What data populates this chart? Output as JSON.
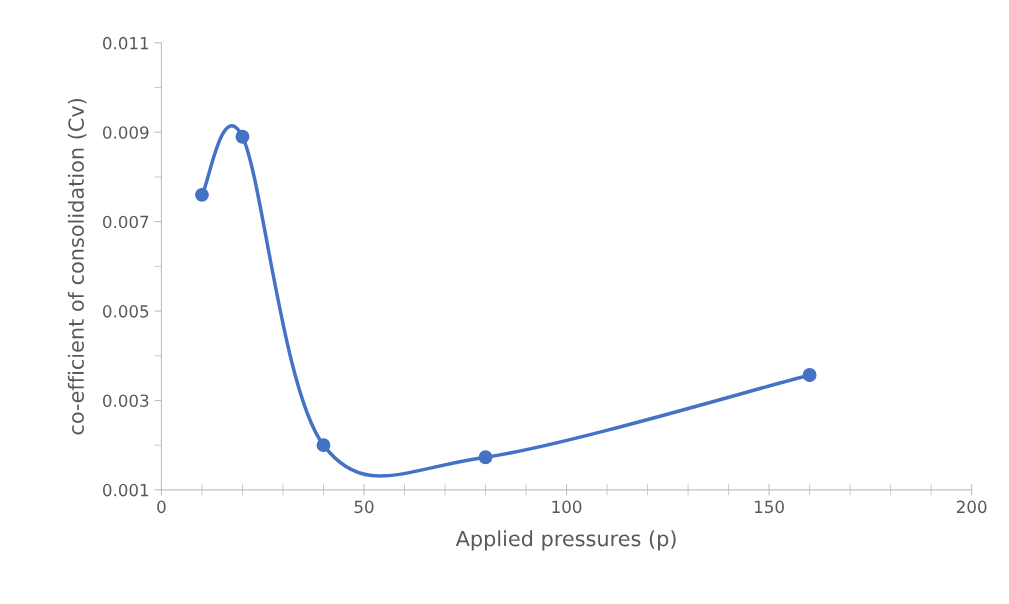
{
  "chart_data": {
    "type": "line",
    "xlabel": "Applied pressures (p)",
    "ylabel": "co-efficient of consolidation (Cv)",
    "x": [
      10,
      20,
      40,
      80,
      160
    ],
    "series": [
      {
        "color": "#4472c4",
        "values": [
          0.0076,
          0.0089,
          0.002,
          0.00173,
          0.00357
        ]
      }
    ],
    "xlim": [
      0,
      200
    ],
    "xticks": [
      0,
      50,
      100,
      150,
      200
    ],
    "ylim": [
      0.001,
      0.011
    ],
    "yticks": [
      0.001,
      0.003,
      0.005,
      0.007,
      0.009,
      0.011
    ],
    "grid": false,
    "marker": "circle",
    "line_style": "solid"
  }
}
